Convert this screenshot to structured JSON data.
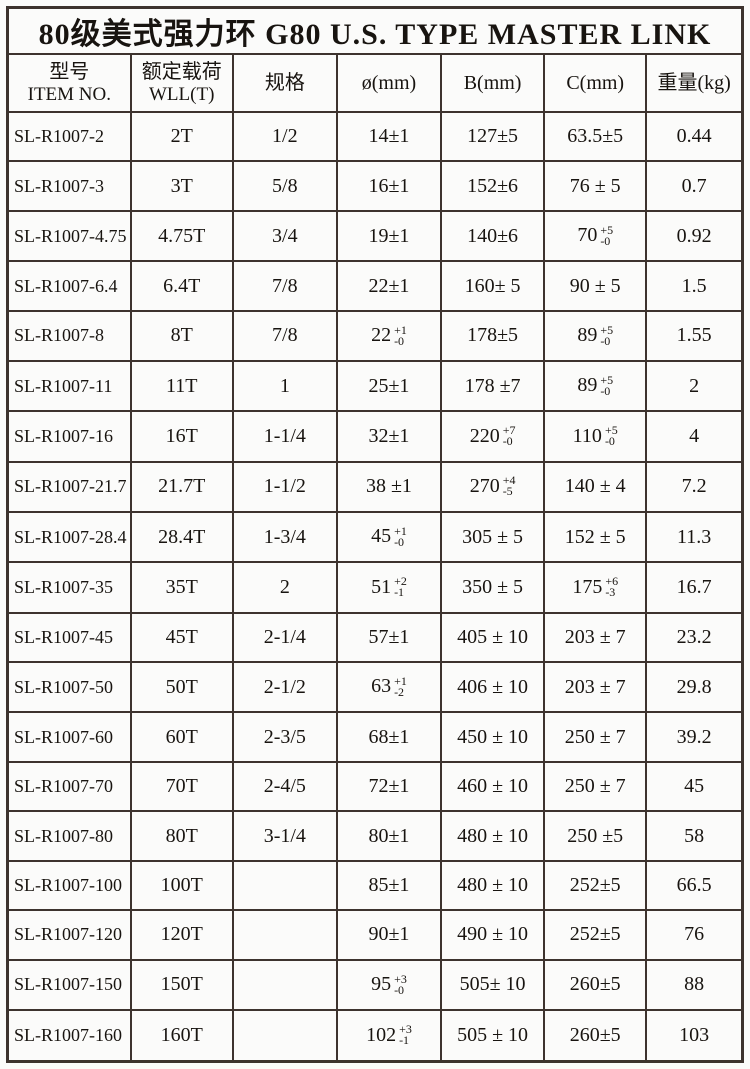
{
  "title": "80级美式强力环 G80 U.S. TYPE MASTER LINK",
  "table": {
    "header": {
      "item": {
        "zh": "型号",
        "en": "ITEM NO."
      },
      "wll": {
        "zh": "额定载荷",
        "en": "WLL(T)"
      },
      "spec": "规格",
      "dia": "ø(mm)",
      "b": "B(mm)",
      "c": "C(mm)",
      "wt": "重量(kg)"
    },
    "rows": [
      {
        "item": "SL-R1007-2",
        "wll": "2T",
        "spec": "1/2",
        "dia": "14±1",
        "b_mm": "127±5",
        "c_mm": "63.5±5",
        "wt": "0.44"
      },
      {
        "item": "SL-R1007-3",
        "wll": "3T",
        "spec": "5/8",
        "dia": "16±1",
        "b_mm": "152±6",
        "c_mm": "76 ± 5",
        "wt": "0.7"
      },
      {
        "item": "SL-R1007-4.75",
        "wll": "4.75T",
        "spec": "3/4",
        "dia": "19±1",
        "b_mm": "140±6",
        "c_mm": {
          "base": "70",
          "sup": "+5",
          "sub": "-0"
        },
        "wt": "0.92"
      },
      {
        "item": "SL-R1007-6.4",
        "wll": "6.4T",
        "spec": "7/8",
        "dia": "22±1",
        "b_mm": "160± 5",
        "c_mm": "90 ± 5",
        "wt": "1.5"
      },
      {
        "item": "SL-R1007-8",
        "wll": "8T",
        "spec": "7/8",
        "dia": {
          "base": "22",
          "sup": "+1",
          "sub": "-0"
        },
        "b_mm": "178±5",
        "c_mm": {
          "base": "89",
          "sup": "+5",
          "sub": "-0"
        },
        "wt": "1.55"
      },
      {
        "item": "SL-R1007-11",
        "wll": "11T",
        "spec": "1",
        "dia": "25±1",
        "b_mm": "178 ±7",
        "c_mm": {
          "base": "89",
          "sup": "+5",
          "sub": "-0"
        },
        "wt": "2"
      },
      {
        "item": "SL-R1007-16",
        "wll": "16T",
        "spec": "1-1/4",
        "dia": "32±1",
        "b_mm": {
          "base": "220",
          "sup": "+7",
          "sub": "-0"
        },
        "c_mm": {
          "base": "110",
          "sup": "+5",
          "sub": "-0"
        },
        "wt": "4"
      },
      {
        "item": "SL-R1007-21.7",
        "wll": "21.7T",
        "spec": "1-1/2",
        "dia": "38 ±1",
        "b_mm": {
          "base": "270",
          "sup": "+4",
          "sub": "-5"
        },
        "c_mm": "140 ± 4",
        "wt": "7.2"
      },
      {
        "item": "SL-R1007-28.4",
        "wll": "28.4T",
        "spec": "1-3/4",
        "dia": {
          "base": "45",
          "sup": "+1",
          "sub": "-0"
        },
        "b_mm": "305 ± 5",
        "c_mm": "152 ± 5",
        "wt": "11.3"
      },
      {
        "item": "SL-R1007-35",
        "wll": "35T",
        "spec": "2",
        "dia": {
          "base": "51",
          "sup": "+2",
          "sub": "-1"
        },
        "b_mm": "350 ± 5",
        "c_mm": {
          "base": "175",
          "sup": "+6",
          "sub": "-3"
        },
        "wt": "16.7"
      },
      {
        "item": "SL-R1007-45",
        "wll": "45T",
        "spec": "2-1/4",
        "dia": "57±1",
        "b_mm": "405 ± 10",
        "c_mm": "203 ± 7",
        "wt": "23.2"
      },
      {
        "item": "SL-R1007-50",
        "wll": "50T",
        "spec": "2-1/2",
        "dia": {
          "base": "63",
          "sup": "+1",
          "sub": "-2"
        },
        "b_mm": "406 ± 10",
        "c_mm": "203 ± 7",
        "wt": "29.8"
      },
      {
        "item": "SL-R1007-60",
        "wll": "60T",
        "spec": "2-3/5",
        "dia": "68±1",
        "b_mm": "450 ± 10",
        "c_mm": "250 ± 7",
        "wt": "39.2"
      },
      {
        "item": "SL-R1007-70",
        "wll": "70T",
        "spec": "2-4/5",
        "dia": "72±1",
        "b_mm": "460 ± 10",
        "c_mm": "250 ± 7",
        "wt": "45"
      },
      {
        "item": "SL-R1007-80",
        "wll": "80T",
        "spec": "3-1/4",
        "dia": "80±1",
        "b_mm": "480 ± 10",
        "c_mm": "250 ±5",
        "wt": "58"
      },
      {
        "item": "SL-R1007-100",
        "wll": "100T",
        "spec": "",
        "dia": "85±1",
        "b_mm": "480 ± 10",
        "c_mm": "252±5",
        "wt": "66.5"
      },
      {
        "item": "SL-R1007-120",
        "wll": "120T",
        "spec": "",
        "dia": "90±1",
        "b_mm": "490 ± 10",
        "c_mm": "252±5",
        "wt": "76"
      },
      {
        "item": "SL-R1007-150",
        "wll": "150T",
        "spec": "",
        "dia": {
          "base": "95",
          "sup": "+3",
          "sub": "-0"
        },
        "b_mm": "505± 10",
        "c_mm": "260±5",
        "wt": "88"
      },
      {
        "item": "SL-R1007-160",
        "wll": "160T",
        "spec": "",
        "dia": {
          "base": "102",
          "sup": "+3",
          "sub": "-1"
        },
        "b_mm": "505 ± 10",
        "c_mm": "260±5",
        "wt": "103"
      }
    ]
  },
  "colors": {
    "border": "#3d332e",
    "background": "#fbfbfa",
    "text": "#181410"
  }
}
